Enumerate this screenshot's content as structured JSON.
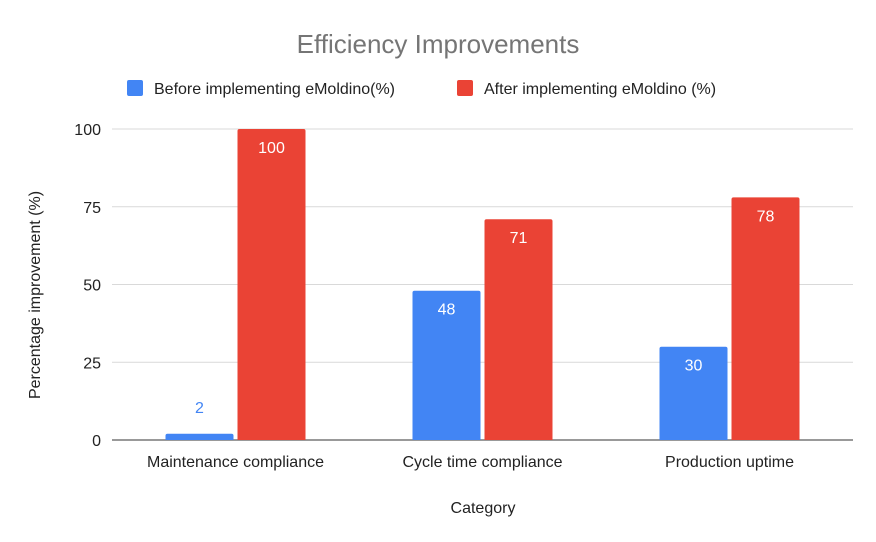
{
  "chart_data": {
    "type": "bar",
    "title": "Efficiency Improvements",
    "xlabel": "Category",
    "ylabel": "Percentage improvement (%)",
    "categories": [
      "Maintenance compliance",
      "Cycle time compliance",
      "Production uptime"
    ],
    "series": [
      {
        "name": "Before implementing eMoldino(%)",
        "values": [
          2,
          48,
          30
        ],
        "color": "#4285f4"
      },
      {
        "name": "After implementing eMoldino (%)",
        "values": [
          100,
          71,
          78
        ],
        "color": "#ea4335"
      }
    ],
    "ylim": [
      0,
      100
    ],
    "yticks": [
      0,
      25,
      50,
      75,
      100
    ],
    "grid": true,
    "legend": "top"
  }
}
